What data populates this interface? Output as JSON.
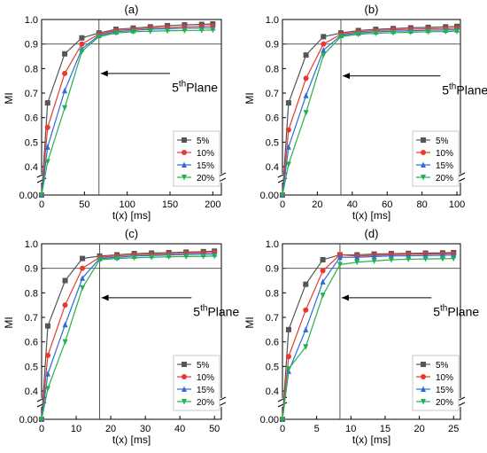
{
  "chart_data": [
    {
      "type": "line",
      "title": "(a)",
      "xlabel": "t(x) [ms]",
      "ylabel": "MI",
      "xlim": [
        0,
        210
      ],
      "xticks": [
        0,
        50,
        100,
        150,
        200
      ],
      "xtick_labels": [
        "0",
        "50",
        "100",
        "150",
        "200"
      ],
      "ylim_upper": [
        0.4,
        1.0
      ],
      "ylim_lower": [
        0.0,
        0.01
      ],
      "yticks": [
        0.4,
        0.5,
        0.6,
        0.7,
        0.8,
        0.9,
        1.0
      ],
      "ytick_labels": [
        "0.4",
        "0.5",
        "0.6",
        "0.7",
        "0.8",
        "0.9",
        "1.0"
      ],
      "ytick_zero_label": "0.00",
      "axis_break": true,
      "hline": 0.9,
      "vline": 67,
      "annotation": {
        "text": "5",
        "sup": "th",
        "rest": "Plane",
        "arrow_to": [
          67,
          0.78
        ],
        "text_at": [
          88,
          0.77
        ]
      },
      "legend": "bottom-right",
      "x": [
        0,
        7,
        27,
        47,
        67,
        87,
        107,
        127,
        147,
        167,
        187,
        200
      ],
      "series": [
        {
          "name": "5%",
          "color": "#555555",
          "marker": "square",
          "values": [
            0.0,
            0.66,
            0.86,
            0.925,
            0.945,
            0.96,
            0.965,
            0.97,
            0.975,
            0.978,
            0.98,
            0.982
          ]
        },
        {
          "name": "10%",
          "color": "#e8392e",
          "marker": "circle",
          "values": [
            0.0,
            0.56,
            0.78,
            0.9,
            0.94,
            0.955,
            0.96,
            0.965,
            0.968,
            0.97,
            0.972,
            0.974
          ]
        },
        {
          "name": "15%",
          "color": "#2f6bd6",
          "marker": "triangle-up",
          "values": [
            0.0,
            0.48,
            0.71,
            0.88,
            0.935,
            0.95,
            0.955,
            0.96,
            0.962,
            0.964,
            0.965,
            0.966
          ]
        },
        {
          "name": "20%",
          "color": "#22b14c",
          "marker": "triangle-down",
          "values": [
            0.0,
            0.42,
            0.64,
            0.87,
            0.93,
            0.945,
            0.95,
            0.952,
            0.954,
            0.955,
            0.956,
            0.957
          ]
        }
      ]
    },
    {
      "type": "line",
      "title": "(b)",
      "xlabel": "t(x) [ms]",
      "ylabel": "MI",
      "xlim": [
        0,
        102
      ],
      "xticks": [
        0,
        20,
        40,
        60,
        80,
        100
      ],
      "xtick_labels": [
        "0",
        "20",
        "40",
        "60",
        "80",
        "100"
      ],
      "ylim_upper": [
        0.4,
        1.0
      ],
      "ylim_lower": [
        0.0,
        0.01
      ],
      "yticks": [
        0.4,
        0.5,
        0.6,
        0.7,
        0.8,
        0.9,
        1.0
      ],
      "ytick_labels": [
        "0.4",
        "0.5",
        "0.6",
        "0.7",
        "0.8",
        "0.9",
        "1.0"
      ],
      "ytick_zero_label": "0.00",
      "axis_break": true,
      "hline": 0.9,
      "vline": 33.5,
      "annotation": {
        "text": "5",
        "sup": "th",
        "rest": "Plane",
        "arrow_to": [
          33.5,
          0.77
        ],
        "text_at": [
          60,
          0.76
        ]
      },
      "legend": "bottom-right",
      "x": [
        0,
        3.5,
        13.5,
        23.5,
        33.5,
        43.5,
        53.5,
        63.5,
        73.5,
        83.5,
        93.5,
        100
      ],
      "series": [
        {
          "name": "5%",
          "color": "#555555",
          "marker": "square",
          "values": [
            0.0,
            0.66,
            0.855,
            0.93,
            0.945,
            0.955,
            0.96,
            0.963,
            0.966,
            0.968,
            0.97,
            0.972
          ]
        },
        {
          "name": "10%",
          "color": "#e8392e",
          "marker": "circle",
          "values": [
            0.0,
            0.55,
            0.76,
            0.9,
            0.94,
            0.95,
            0.955,
            0.958,
            0.96,
            0.962,
            0.963,
            0.964
          ]
        },
        {
          "name": "15%",
          "color": "#2f6bd6",
          "marker": "triangle-up",
          "values": [
            0.0,
            0.48,
            0.69,
            0.875,
            0.935,
            0.945,
            0.95,
            0.952,
            0.954,
            0.956,
            0.957,
            0.958
          ]
        },
        {
          "name": "20%",
          "color": "#22b14c",
          "marker": "triangle-down",
          "values": [
            0.0,
            0.41,
            0.62,
            0.855,
            0.93,
            0.94,
            0.944,
            0.946,
            0.948,
            0.95,
            0.951,
            0.952
          ]
        }
      ]
    },
    {
      "type": "line",
      "title": "(c)",
      "xlabel": "t(x) [ms]",
      "ylabel": "MI",
      "xlim": [
        0,
        52
      ],
      "xticks": [
        0,
        10,
        20,
        30,
        40,
        50
      ],
      "xtick_labels": [
        "0",
        "10",
        "20",
        "30",
        "40",
        "50"
      ],
      "ylim_upper": [
        0.4,
        1.0
      ],
      "ylim_lower": [
        0.0,
        0.01
      ],
      "yticks": [
        0.4,
        0.5,
        0.6,
        0.7,
        0.8,
        0.9,
        1.0
      ],
      "ytick_labels": [
        "0.4",
        "0.5",
        "0.6",
        "0.7",
        "0.8",
        "0.9",
        "1.0"
      ],
      "ytick_zero_label": "0.00",
      "axis_break": true,
      "hline": 0.9,
      "vline": 16.8,
      "annotation": {
        "text": "5",
        "sup": "th",
        "rest": "Plane",
        "arrow_to": [
          16.8,
          0.78
        ],
        "text_at": [
          28,
          0.77
        ]
      },
      "legend": "bottom-right",
      "x": [
        0,
        1.8,
        6.8,
        11.8,
        16.8,
        21.8,
        26.8,
        31.8,
        36.8,
        41.8,
        46.8,
        50
      ],
      "series": [
        {
          "name": "5%",
          "color": "#555555",
          "marker": "square",
          "values": [
            0.0,
            0.665,
            0.85,
            0.94,
            0.95,
            0.955,
            0.96,
            0.962,
            0.964,
            0.966,
            0.968,
            0.97
          ]
        },
        {
          "name": "10%",
          "color": "#e8392e",
          "marker": "circle",
          "values": [
            0.0,
            0.545,
            0.75,
            0.9,
            0.945,
            0.95,
            0.955,
            0.957,
            0.959,
            0.961,
            0.963,
            0.965
          ]
        },
        {
          "name": "15%",
          "color": "#2f6bd6",
          "marker": "triangle-up",
          "values": [
            0.0,
            0.47,
            0.67,
            0.86,
            0.94,
            0.945,
            0.95,
            0.952,
            0.954,
            0.956,
            0.957,
            0.958
          ]
        },
        {
          "name": "20%",
          "color": "#22b14c",
          "marker": "triangle-down",
          "values": [
            0.0,
            0.41,
            0.6,
            0.82,
            0.935,
            0.94,
            0.943,
            0.945,
            0.947,
            0.948,
            0.949,
            0.95
          ]
        }
      ]
    },
    {
      "type": "line",
      "title": "(d)",
      "xlabel": "t(x) [ms]",
      "ylabel": "MI",
      "xlim": [
        0,
        26
      ],
      "xticks": [
        0,
        5,
        10,
        15,
        20,
        25
      ],
      "xtick_labels": [
        "0",
        "5",
        "10",
        "15",
        "20",
        "25"
      ],
      "ylim_upper": [
        0.4,
        1.0
      ],
      "ylim_lower": [
        0.0,
        0.01
      ],
      "yticks": [
        0.4,
        0.5,
        0.6,
        0.7,
        0.8,
        0.9,
        1.0
      ],
      "ytick_labels": [
        "0.4",
        "0.5",
        "0.6",
        "0.7",
        "0.8",
        "0.9",
        "1.0"
      ],
      "ytick_zero_label": "0.00",
      "axis_break": true,
      "hline": 0.9,
      "vline": 8.4,
      "annotation": {
        "text": "5",
        "sup": "th",
        "rest": "Plane",
        "arrow_to": [
          8.4,
          0.78
        ],
        "text_at": [
          14,
          0.77
        ]
      },
      "legend": "bottom-right",
      "x": [
        0,
        0.9,
        3.4,
        5.9,
        8.4,
        10.9,
        13.4,
        15.9,
        18.4,
        20.9,
        23.4,
        25
      ],
      "series": [
        {
          "name": "5%",
          "color": "#555555",
          "marker": "square",
          "values": [
            0.0,
            0.65,
            0.835,
            0.935,
            0.955,
            0.955,
            0.958,
            0.96,
            0.961,
            0.962,
            0.963,
            0.964
          ]
        },
        {
          "name": "10%",
          "color": "#e8392e",
          "marker": "circle",
          "values": [
            0.0,
            0.54,
            0.73,
            0.89,
            0.955,
            0.95,
            0.953,
            0.955,
            0.957,
            0.958,
            0.959,
            0.96
          ]
        },
        {
          "name": "15%",
          "color": "#2f6bd6",
          "marker": "triangle-up",
          "values": [
            0.0,
            0.48,
            0.65,
            0.845,
            0.945,
            0.945,
            0.948,
            0.95,
            0.951,
            0.952,
            0.953,
            0.954
          ]
        },
        {
          "name": "20%",
          "color": "#22b14c",
          "marker": "triangle-down",
          "values": [
            0.0,
            0.49,
            0.58,
            0.79,
            0.915,
            0.925,
            0.93,
            0.935,
            0.937,
            0.938,
            0.939,
            0.94
          ]
        }
      ]
    }
  ]
}
